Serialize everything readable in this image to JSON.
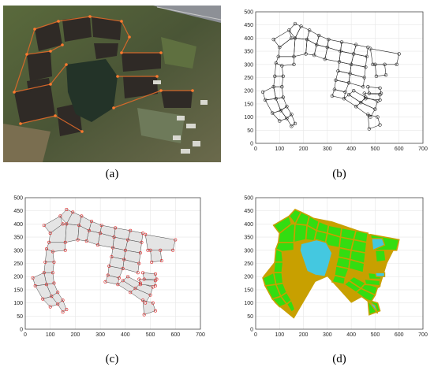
{
  "figure": {
    "panel_a": {
      "label": "(a)",
      "letter": "a"
    },
    "panel_b": {
      "label": "(b)",
      "letter": "b"
    },
    "panel_c": {
      "label": "(c)",
      "letter": "c"
    },
    "panel_d": {
      "label": "(d)",
      "letter": "d"
    }
  },
  "chart_data": [
    {
      "panel": "b",
      "type": "line",
      "xlim": [
        0,
        700
      ],
      "ylim": [
        0,
        500
      ],
      "x_ticks": [
        "0",
        "100",
        "200",
        "300",
        "400",
        "500",
        "600",
        "700"
      ],
      "y_ticks": [
        "0",
        "50",
        "100",
        "150",
        "200",
        "250",
        "300",
        "350",
        "400",
        "450",
        "500"
      ],
      "grid": true,
      "style": "black polygon outlines with circle vertex markers"
    },
    {
      "panel": "c",
      "type": "line",
      "xlim": [
        0,
        700
      ],
      "ylim": [
        0,
        500
      ],
      "x_ticks": [
        "0",
        "100",
        "200",
        "300",
        "400",
        "500",
        "600",
        "700"
      ],
      "y_ticks": [
        "0",
        "50",
        "100",
        "150",
        "200",
        "250",
        "300",
        "350",
        "400",
        "450",
        "500"
      ],
      "grid": true,
      "style": "grey road bands with red vertex markers"
    },
    {
      "panel": "d",
      "type": "line",
      "xlim": [
        0,
        700
      ],
      "ylim": [
        0,
        500
      ],
      "x_ticks": [
        "0",
        "100",
        "200",
        "300",
        "400",
        "500",
        "600",
        "700"
      ],
      "y_ticks": [
        "0",
        "50",
        "100",
        "150",
        "200",
        "250",
        "300",
        "350",
        "400",
        "450",
        "500"
      ],
      "grid": true,
      "colors": {
        "field": "#33dd11",
        "pond": "#44c8e0",
        "road": "#c8a000"
      }
    }
  ]
}
